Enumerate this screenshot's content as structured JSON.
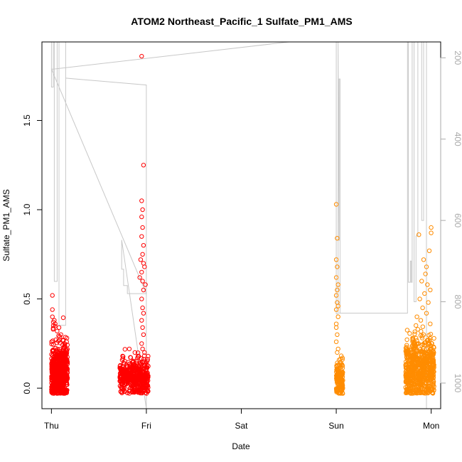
{
  "chart_data": {
    "type": "scatter",
    "title": "ATOM2 Northeast_Pacific_1 Sulfate_PM1_AMS",
    "xlabel": "Date",
    "ylabel": "Sulfate_PM1_AMS",
    "x_ticks": [
      "Thu",
      "Fri",
      "Sat",
      "Sun",
      "Mon"
    ],
    "x_range": [
      -0.1,
      4.1
    ],
    "y_ticks": [
      "0.0",
      "0.5",
      "1.0",
      "1.5"
    ],
    "y_range": [
      -0.115,
      1.94
    ],
    "y2_ticks": [
      "200",
      "400",
      "600",
      "800",
      "1000"
    ],
    "y2_range": [
      161,
      1063
    ],
    "grid": false,
    "legend": "none",
    "colors": {
      "flight1": "#ff0000",
      "flight2": "#ff8c00",
      "pressure": "#c8c8c8",
      "axis": "#000000",
      "right_axis": "#aaaaaa"
    },
    "series": [
      {
        "color": "flight1",
        "clusters": [
          {
            "x_start": 0.0,
            "x_end": 0.17,
            "y_median": 0.09,
            "spread": 0.08,
            "n": 650,
            "extra": [
              [
                0.01,
                0.52
              ],
              [
                0.01,
                0.44
              ],
              [
                0.01,
                0.4
              ],
              [
                0.02,
                0.37
              ],
              [
                0.02,
                0.35
              ],
              [
                0.03,
                0.38
              ],
              [
                0.04,
                0.36
              ],
              [
                0.06,
                0.32
              ],
              [
                0.08,
                0.34
              ],
              [
                0.1,
                0.3
              ],
              [
                0.12,
                0.27
              ],
              [
                0.14,
                0.25
              ],
              [
                0.16,
                0.26
              ]
            ]
          },
          {
            "x_start": 0.72,
            "x_end": 1.02,
            "y_median": 0.06,
            "spread": 0.05,
            "n": 500,
            "extra": [
              [
                0.95,
                1.86
              ],
              [
                0.97,
                1.25
              ],
              [
                0.95,
                1.05
              ],
              [
                0.96,
                1.0
              ],
              [
                0.95,
                0.96
              ],
              [
                0.96,
                0.9
              ],
              [
                0.95,
                0.85
              ],
              [
                0.97,
                0.8
              ],
              [
                0.96,
                0.75
              ],
              [
                0.97,
                0.7
              ],
              [
                0.95,
                0.65
              ],
              [
                0.96,
                0.6
              ],
              [
                0.97,
                0.55
              ],
              [
                0.95,
                0.5
              ],
              [
                0.96,
                0.45
              ],
              [
                0.97,
                0.42
              ],
              [
                0.95,
                0.38
              ],
              [
                0.96,
                0.34
              ],
              [
                0.97,
                0.3
              ],
              [
                0.95,
                0.25
              ],
              [
                0.96,
                0.22
              ],
              [
                0.98,
                0.2
              ],
              [
                0.75,
                0.18
              ],
              [
                0.82,
                0.22
              ],
              [
                0.94,
                0.72
              ],
              [
                0.98,
                0.68
              ],
              [
                0.93,
                0.62
              ],
              [
                0.99,
                0.58
              ]
            ]
          }
        ]
      },
      {
        "color": "flight2",
        "clusters": [
          {
            "x_start": 3.0,
            "x_end": 3.07,
            "y_median": 0.05,
            "spread": 0.05,
            "n": 180,
            "extra": [
              [
                3.0,
                1.03
              ],
              [
                3.01,
                0.84
              ],
              [
                3.0,
                0.72
              ],
              [
                3.01,
                0.68
              ],
              [
                3.0,
                0.62
              ],
              [
                3.02,
                0.58
              ],
              [
                3.0,
                0.52
              ],
              [
                3.01,
                0.48
              ],
              [
                3.0,
                0.44
              ],
              [
                3.02,
                0.4
              ],
              [
                3.0,
                0.36
              ],
              [
                3.01,
                0.3
              ],
              [
                3.0,
                0.26
              ],
              [
                3.02,
                0.22
              ],
              [
                3.01,
                0.2
              ],
              [
                3.0,
                0.34
              ],
              [
                3.02,
                0.46
              ],
              [
                3.01,
                0.55
              ]
            ]
          },
          {
            "x_start": 3.73,
            "x_end": 4.03,
            "y_median": 0.1,
            "spread": 0.09,
            "n": 700,
            "extra": [
              [
                4.0,
                0.9
              ],
              [
                4.0,
                0.87
              ],
              [
                3.87,
                0.86
              ],
              [
                3.98,
                0.77
              ],
              [
                3.92,
                0.72
              ],
              [
                3.95,
                0.68
              ],
              [
                3.9,
                0.6
              ],
              [
                3.94,
                0.64
              ],
              [
                3.96,
                0.58
              ],
              [
                3.99,
                0.55
              ],
              [
                3.88,
                0.5
              ],
              [
                3.93,
                0.53
              ],
              [
                3.97,
                0.48
              ],
              [
                3.91,
                0.45
              ],
              [
                3.95,
                0.42
              ],
              [
                3.85,
                0.4
              ],
              [
                3.89,
                0.38
              ],
              [
                3.99,
                0.36
              ],
              [
                3.86,
                0.33
              ],
              [
                3.92,
                0.3
              ],
              [
                3.84,
                0.28
              ],
              [
                3.97,
                0.27
              ],
              [
                3.83,
                0.25
              ]
            ]
          }
        ]
      },
      {
        "color": "pressure",
        "axis": "right",
        "type": "line",
        "points": [
          [
            0.0,
            161
          ],
          [
            0.0,
            272
          ],
          [
            0.02,
            272
          ],
          [
            0.02,
            161
          ],
          [
            0.03,
            161
          ],
          [
            0.03,
            750
          ],
          [
            0.06,
            750
          ],
          [
            0.06,
            161
          ],
          [
            0.08,
            161
          ],
          [
            0.08,
            858
          ],
          [
            0.15,
            858
          ],
          [
            0.15,
            161
          ],
          [
            0.15,
            250
          ],
          [
            1.0,
            267
          ],
          [
            1.0,
            1063
          ],
          [
            0.74,
            648
          ],
          [
            0.74,
            720
          ],
          [
            0.76,
            720
          ],
          [
            0.76,
            760
          ],
          [
            0.8,
            760
          ],
          [
            0.8,
            780
          ],
          [
            1.0,
            780
          ],
          [
            0.0,
            228
          ],
          [
            0.02,
            228
          ],
          [
            2.5,
            161
          ],
          [
            3.0,
            161
          ],
          [
            3.0,
            830
          ],
          [
            3.02,
            830
          ],
          [
            3.02,
            161
          ],
          [
            3.03,
            650
          ],
          [
            3.03,
            252
          ],
          [
            3.04,
            252
          ],
          [
            3.04,
            828
          ],
          [
            3.03,
            828
          ],
          [
            3.75,
            828
          ],
          [
            3.75,
            161
          ],
          [
            3.76,
            161
          ],
          [
            3.76,
            752
          ],
          [
            3.78,
            752
          ],
          [
            3.78,
            700
          ],
          [
            3.79,
            700
          ],
          [
            3.79,
            752
          ],
          [
            3.8,
            752
          ],
          [
            3.8,
            161
          ],
          [
            3.82,
            161
          ],
          [
            3.82,
            800
          ],
          [
            3.84,
            800
          ],
          [
            3.84,
            638
          ],
          [
            3.86,
            638
          ],
          [
            3.86,
            161
          ],
          [
            3.9,
            161
          ],
          [
            3.9,
            600
          ],
          [
            3.92,
            600
          ],
          [
            3.92,
            161
          ],
          [
            3.95,
            161
          ],
          [
            3.95,
            1063
          ]
        ]
      }
    ]
  }
}
